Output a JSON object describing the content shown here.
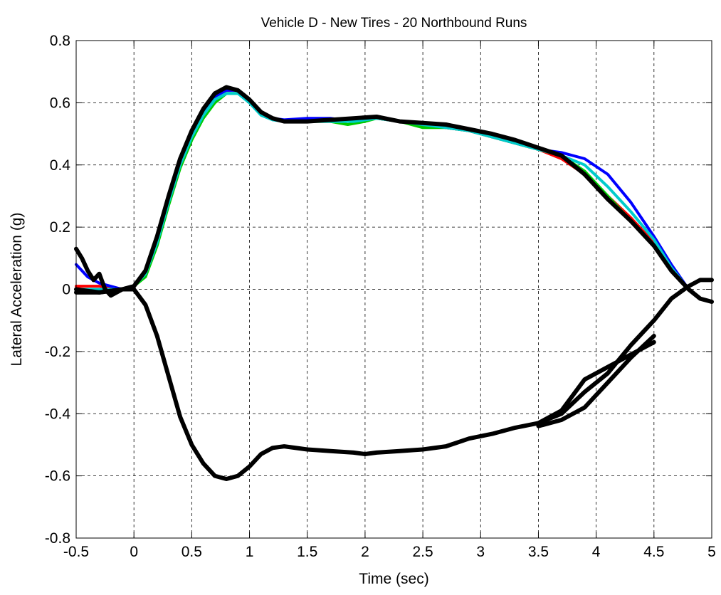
{
  "chart_data": {
    "type": "line",
    "title": "Vehicle D - New Tires - 20 Northbound Runs",
    "xlabel": "Time (sec)",
    "ylabel": "Lateral Acceleration (g)",
    "xlim": [
      -0.5,
      5
    ],
    "ylim": [
      -0.8,
      0.8
    ],
    "x_ticks": [
      -0.5,
      0,
      0.5,
      1,
      1.5,
      2,
      2.5,
      3,
      3.5,
      4,
      4.5,
      5
    ],
    "y_ticks": [
      -0.8,
      -0.6,
      -0.4,
      -0.2,
      0,
      0.2,
      0.4,
      0.6,
      0.8
    ],
    "x_tick_labels": [
      "-0.5",
      "0",
      "0.5",
      "1",
      "1.5",
      "2",
      "2.5",
      "3",
      "3.5",
      "4",
      "4.5",
      "5"
    ],
    "y_tick_labels": [
      "-0.8",
      "-0.6",
      "-0.4",
      "-0.2",
      "0",
      "0.2",
      "0.4",
      "0.6",
      "0.8"
    ],
    "grid": true,
    "grid_style": "dashed",
    "legend": "none",
    "colors": {
      "red": "#ff0000",
      "blue": "#0000ff",
      "green": "#00cc00",
      "cyan": "#00cccc",
      "black": "#000000"
    },
    "series": [
      {
        "color": "#ff0000",
        "x": [
          -0.5,
          -0.3,
          -0.1,
          0,
          0.1,
          0.2,
          0.3,
          0.4,
          0.5,
          0.6,
          0.7,
          0.8,
          0.9,
          1.0,
          1.1,
          1.2,
          1.3,
          1.5,
          1.7,
          1.9,
          2.1,
          2.3,
          2.5,
          2.7,
          2.9,
          3.1,
          3.3,
          3.5,
          3.7,
          3.9,
          4.1,
          4.3,
          4.5,
          4.65,
          4.8
        ],
        "y": [
          0.01,
          0.01,
          0.0,
          0.01,
          0.05,
          0.16,
          0.29,
          0.41,
          0.5,
          0.57,
          0.62,
          0.64,
          0.64,
          0.61,
          0.57,
          0.55,
          0.54,
          0.545,
          0.54,
          0.54,
          0.55,
          0.54,
          0.53,
          0.52,
          0.51,
          0.49,
          0.47,
          0.45,
          0.42,
          0.37,
          0.3,
          0.23,
          0.15,
          0.07,
          0.0
        ]
      },
      {
        "color": "#0000ff",
        "x": [
          -0.5,
          -0.4,
          -0.3,
          -0.1,
          0,
          0.1,
          0.2,
          0.3,
          0.4,
          0.5,
          0.6,
          0.7,
          0.8,
          0.9,
          1.0,
          1.1,
          1.2,
          1.3,
          1.5,
          1.7,
          1.9,
          2.1,
          2.3,
          2.5,
          2.7,
          2.9,
          3.1,
          3.3,
          3.5,
          3.7,
          3.9,
          4.1,
          4.3,
          4.5,
          4.65,
          4.8
        ],
        "y": [
          0.08,
          0.04,
          0.02,
          0.0,
          0.01,
          0.05,
          0.16,
          0.29,
          0.41,
          0.5,
          0.57,
          0.62,
          0.64,
          0.64,
          0.61,
          0.57,
          0.55,
          0.545,
          0.55,
          0.55,
          0.54,
          0.55,
          0.54,
          0.53,
          0.52,
          0.51,
          0.49,
          0.47,
          0.45,
          0.44,
          0.42,
          0.37,
          0.28,
          0.17,
          0.08,
          0.0
        ]
      },
      {
        "color": "#00cc00",
        "x": [
          -0.5,
          -0.3,
          -0.1,
          0,
          0.1,
          0.2,
          0.3,
          0.4,
          0.5,
          0.6,
          0.7,
          0.8,
          0.9,
          1.0,
          1.1,
          1.2,
          1.3,
          1.5,
          1.7,
          1.85,
          2.0,
          2.1,
          2.3,
          2.5,
          2.7,
          2.9,
          3.1,
          3.3,
          3.5,
          3.7,
          3.9,
          4.1,
          4.3,
          4.5,
          4.65,
          4.8
        ],
        "y": [
          0.0,
          0.0,
          0.0,
          0.01,
          0.04,
          0.14,
          0.27,
          0.39,
          0.48,
          0.55,
          0.6,
          0.63,
          0.63,
          0.61,
          0.57,
          0.55,
          0.54,
          0.54,
          0.54,
          0.53,
          0.54,
          0.55,
          0.54,
          0.52,
          0.52,
          0.51,
          0.49,
          0.47,
          0.45,
          0.43,
          0.38,
          0.3,
          0.22,
          0.14,
          0.06,
          0.0
        ]
      },
      {
        "color": "#00cccc",
        "x": [
          -0.5,
          -0.3,
          -0.1,
          0,
          0.1,
          0.2,
          0.3,
          0.4,
          0.5,
          0.6,
          0.7,
          0.8,
          0.9,
          1.0,
          1.1,
          1.2,
          1.3,
          1.5,
          1.7,
          1.9,
          2.1,
          2.3,
          2.5,
          2.7,
          2.9,
          3.1,
          3.3,
          3.5,
          3.7,
          3.9,
          4.1,
          4.3,
          4.5,
          4.65,
          4.8
        ],
        "y": [
          0.0,
          0.0,
          0.0,
          0.01,
          0.05,
          0.15,
          0.28,
          0.4,
          0.49,
          0.56,
          0.61,
          0.63,
          0.63,
          0.6,
          0.56,
          0.545,
          0.54,
          0.54,
          0.54,
          0.54,
          0.55,
          0.54,
          0.53,
          0.52,
          0.51,
          0.49,
          0.47,
          0.45,
          0.43,
          0.4,
          0.33,
          0.25,
          0.16,
          0.07,
          0.0
        ]
      },
      {
        "color": "#000000",
        "x": [
          -0.5,
          -0.3,
          -0.1,
          0,
          0.1,
          0.2,
          0.3,
          0.4,
          0.5,
          0.6,
          0.7,
          0.8,
          0.9,
          1.0,
          1.1,
          1.2,
          1.3,
          1.5,
          1.7,
          1.9,
          2.1,
          2.3,
          2.5,
          2.7,
          2.9,
          3.1,
          3.3,
          3.5,
          3.7,
          3.9,
          4.1,
          4.3,
          4.5,
          4.65,
          4.8,
          4.9,
          5.0
        ],
        "y": [
          0.0,
          -0.01,
          0.0,
          0.01,
          0.06,
          0.17,
          0.3,
          0.42,
          0.51,
          0.58,
          0.63,
          0.65,
          0.64,
          0.61,
          0.57,
          0.55,
          0.54,
          0.54,
          0.545,
          0.55,
          0.555,
          0.54,
          0.535,
          0.53,
          0.515,
          0.5,
          0.48,
          0.455,
          0.43,
          0.37,
          0.29,
          0.22,
          0.14,
          0.06,
          0.0,
          -0.03,
          -0.04
        ]
      },
      {
        "color": "#000000",
        "x": [
          -0.5,
          -0.45,
          -0.4,
          -0.35,
          -0.3,
          -0.25,
          -0.2,
          -0.1,
          0
        ],
        "y": [
          0.13,
          0.1,
          0.06,
          0.03,
          0.05,
          0.0,
          -0.02,
          0.0,
          0.01
        ]
      },
      {
        "color": "#000000",
        "x": [
          -0.5,
          -0.3,
          -0.1,
          0,
          0.1,
          0.2,
          0.3,
          0.4,
          0.5,
          0.6,
          0.7,
          0.8,
          0.9,
          1.0,
          1.1,
          1.2,
          1.3,
          1.5,
          1.7,
          1.9,
          2.0,
          2.1,
          2.3,
          2.5,
          2.7,
          2.9,
          3.1,
          3.3,
          3.5,
          3.7,
          3.9,
          4.1,
          4.3,
          4.5,
          4.65,
          4.8,
          4.9,
          5.0
        ],
        "y": [
          -0.01,
          -0.01,
          0.0,
          0.0,
          -0.05,
          -0.15,
          -0.28,
          -0.41,
          -0.5,
          -0.56,
          -0.6,
          -0.61,
          -0.6,
          -0.57,
          -0.53,
          -0.51,
          -0.505,
          -0.515,
          -0.52,
          -0.525,
          -0.53,
          -0.525,
          -0.52,
          -0.515,
          -0.505,
          -0.48,
          -0.465,
          -0.445,
          -0.43,
          -0.4,
          -0.33,
          -0.27,
          -0.18,
          -0.1,
          -0.03,
          0.01,
          0.03,
          0.03
        ]
      },
      {
        "color": "#000000",
        "x": [
          3.5,
          3.7,
          3.9,
          4.1,
          4.3,
          4.5
        ],
        "y": [
          -0.43,
          -0.39,
          -0.29,
          -0.25,
          -0.21,
          -0.17
        ]
      },
      {
        "color": "#000000",
        "x": [
          3.5,
          3.7,
          3.9,
          4.1,
          4.3,
          4.5
        ],
        "y": [
          -0.44,
          -0.42,
          -0.38,
          -0.3,
          -0.22,
          -0.15
        ]
      }
    ]
  }
}
